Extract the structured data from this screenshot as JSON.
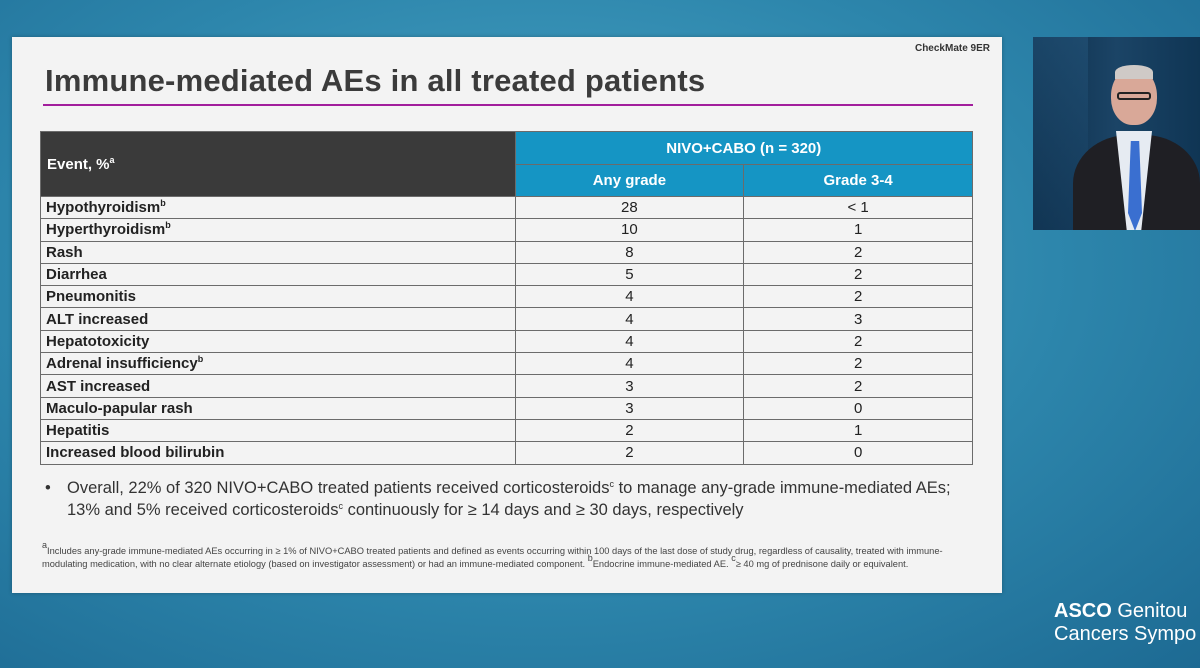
{
  "slide": {
    "tag": "CheckMate 9ER",
    "title": "Immune-mediated AEs in all treated patients",
    "table": {
      "event_header": "Event, %",
      "event_header_sup": "a",
      "group_header": "NIVO+CABO (n = 320)",
      "col_any": "Any grade",
      "col_grade": "Grade 3-4",
      "rows": [
        {
          "event": "Hypothyroidism",
          "sup": "b",
          "any": "28",
          "g34": "< 1"
        },
        {
          "event": "Hyperthyroidism",
          "sup": "b",
          "any": "10",
          "g34": "1"
        },
        {
          "event": "Rash",
          "sup": "",
          "any": "8",
          "g34": "2"
        },
        {
          "event": "Diarrhea",
          "sup": "",
          "any": "5",
          "g34": "2"
        },
        {
          "event": "Pneumonitis",
          "sup": "",
          "any": "4",
          "g34": "2"
        },
        {
          "event": "ALT increased",
          "sup": "",
          "any": "4",
          "g34": "3"
        },
        {
          "event": "Hepatotoxicity",
          "sup": "",
          "any": "4",
          "g34": "2"
        },
        {
          "event": "Adrenal insufficiency",
          "sup": "b",
          "any": "4",
          "g34": "2"
        },
        {
          "event": "AST increased",
          "sup": "",
          "any": "3",
          "g34": "2"
        },
        {
          "event": "Maculo-papular rash",
          "sup": "",
          "any": "3",
          "g34": "0"
        },
        {
          "event": "Hepatitis",
          "sup": "",
          "any": "2",
          "g34": "1"
        },
        {
          "event": "Increased blood bilirubin",
          "sup": "",
          "any": "2",
          "g34": "0"
        }
      ]
    },
    "bullet": {
      "marker": "•",
      "part1": "Overall, 22% of 320 NIVO+CABO treated patients received corticosteroids",
      "sup1": "c",
      "part2": " to manage any-grade immune-mediated AEs; 13% and 5% received corticosteroids",
      "sup2": "c",
      "part3": " continuously for ≥ 14 days and ≥ 30 days, respectively"
    },
    "footnote": {
      "sup_a": "a",
      "text_a": "Includes any-grade immune-mediated AEs occurring in ≥ 1% of NIVO+CABO treated patients and defined as events occurring within 100 days of the last dose of study drug, regardless of causality, treated with immune-modulating medication, with no clear alternate etiology (based on investigator assessment) or had an immune-mediated component. ",
      "sup_b": "b",
      "text_b": "Endocrine immune-mediated AE. ",
      "sup_c": "c",
      "text_c": "≥ 40 mg of prednisone daily or equivalent."
    }
  },
  "branding": {
    "asco": "ASCO",
    "line1_rest": " Genitou",
    "line2": "Cancers Sympo"
  },
  "colors": {
    "table_header_dark": "#3a3a3a",
    "table_header_blue": "#1595c4",
    "title_rule": "#a21e9c"
  }
}
